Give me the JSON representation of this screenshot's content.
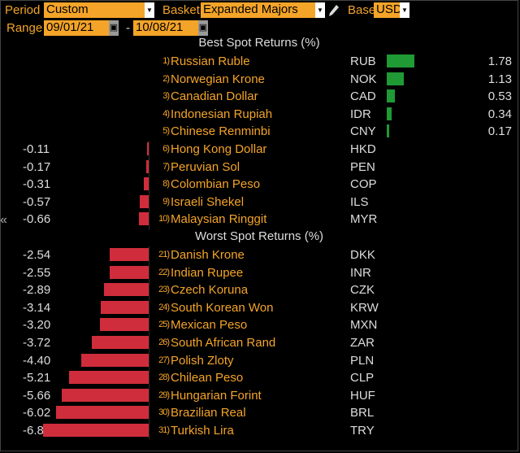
{
  "toolbar": {
    "period_label": "Period",
    "period_value": "Custom",
    "basket_label": "Basket",
    "basket_value": "Expanded Majors",
    "base_label": "Base",
    "base_value": "USD",
    "range_label": "Range",
    "range_start": "09/01/21",
    "range_sep": "-",
    "range_end": "10/08/21",
    "edit_icon": "pencil-icon",
    "calendar_icon": "calendar-icon",
    "dropdown_icon": "triangle-down-icon"
  },
  "chevron_icon": "chevron-left-icon",
  "chevron_glyph": "«",
  "colors": {
    "accent": "#f4a428",
    "positive": "#1f9a34",
    "negative": "#cf2d3b"
  },
  "chart_data": {
    "type": "bar",
    "sections": [
      {
        "title": "Best Spot Returns (%)",
        "rows": [
          {
            "rank": "1)",
            "name": "Russian Ruble",
            "code": "RUB",
            "value": 1.78
          },
          {
            "rank": "2)",
            "name": "Norwegian Krone",
            "code": "NOK",
            "value": 1.13
          },
          {
            "rank": "3)",
            "name": "Canadian Dollar",
            "code": "CAD",
            "value": 0.53
          },
          {
            "rank": "4)",
            "name": "Indonesian Rupiah",
            "code": "IDR",
            "value": 0.34
          },
          {
            "rank": "5)",
            "name": "Chinese Renminbi",
            "code": "CNY",
            "value": 0.17
          },
          {
            "rank": "6)",
            "name": "Hong Kong Dollar",
            "code": "HKD",
            "value": -0.11
          },
          {
            "rank": "7)",
            "name": "Peruvian Sol",
            "code": "PEN",
            "value": -0.17
          },
          {
            "rank": "8)",
            "name": "Colombian Peso",
            "code": "COP",
            "value": -0.31
          },
          {
            "rank": "9)",
            "name": "Israeli Shekel",
            "code": "ILS",
            "value": -0.57
          },
          {
            "rank": "10)",
            "name": "Malaysian Ringgit",
            "code": "MYR",
            "value": -0.66
          }
        ]
      },
      {
        "title": "Worst Spot Returns (%)",
        "rows": [
          {
            "rank": "21)",
            "name": "Danish Krone",
            "code": "DKK",
            "value": -2.54
          },
          {
            "rank": "22)",
            "name": "Indian Rupee",
            "code": "INR",
            "value": -2.55
          },
          {
            "rank": "23)",
            "name": "Czech Koruna",
            "code": "CZK",
            "value": -2.89
          },
          {
            "rank": "24)",
            "name": "South Korean Won",
            "code": "KRW",
            "value": -3.14
          },
          {
            "rank": "25)",
            "name": "Mexican Peso",
            "code": "MXN",
            "value": -3.2
          },
          {
            "rank": "26)",
            "name": "South African Rand",
            "code": "ZAR",
            "value": -3.72
          },
          {
            "rank": "27)",
            "name": "Polish Zloty",
            "code": "PLN",
            "value": -4.4
          },
          {
            "rank": "28)",
            "name": "Chilean Peso",
            "code": "CLP",
            "value": -5.21
          },
          {
            "rank": "29)",
            "name": "Hungarian Forint",
            "code": "HUF",
            "value": -5.66
          },
          {
            "rank": "30)",
            "name": "Brazilian Real",
            "code": "BRL",
            "value": -6.02
          },
          {
            "rank": "31)",
            "name": "Turkish Lira",
            "code": "TRY",
            "value": -6.88
          }
        ]
      }
    ]
  }
}
